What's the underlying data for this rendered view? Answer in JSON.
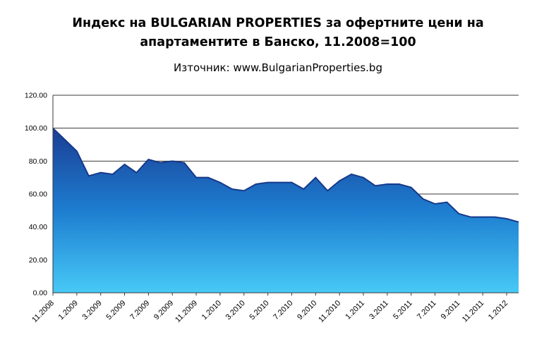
{
  "header": {
    "title_lines": [
      "Индекс на BULGARIAN PROPERTIES за офертните цени на",
      "апартаментите в Банско, 11.2008=100"
    ],
    "subtitle": "Източник: www.BulgarianProperties.bg"
  },
  "chart_data": {
    "type": "area",
    "title": "Индекс на BULGARIAN PROPERTIES за офертните цени на апартаментите в Банско, 11.2008=100",
    "subtitle": "Източник: www.BulgarianProperties.bg",
    "x": [
      "11.2008",
      "12.2008",
      "1.2009",
      "2.2009",
      "3.2009",
      "4.2009",
      "5.2009",
      "6.2009",
      "7.2009",
      "8.2009",
      "9.2009",
      "10.2009",
      "11.2009",
      "12.2009",
      "1.2010",
      "2.2010",
      "3.2010",
      "4.2010",
      "5.2010",
      "6.2010",
      "7.2010",
      "8.2010",
      "9.2010",
      "10.2010",
      "11.2010",
      "12.2010",
      "1.2011",
      "2.2011",
      "3.2011",
      "4.2011",
      "5.2011",
      "6.2011",
      "7.2011",
      "8.2011",
      "9.2011",
      "10.2011",
      "11.2011",
      "12.2011",
      "1.2012",
      "2.2012"
    ],
    "values": [
      100,
      93,
      86,
      71,
      73,
      72,
      78,
      73,
      81,
      79,
      80,
      79,
      70,
      70,
      67,
      63,
      62,
      66,
      67,
      67,
      67,
      63,
      70,
      62,
      68,
      72,
      70,
      65,
      66,
      66,
      64,
      57,
      54,
      55,
      48,
      46,
      46,
      46,
      45,
      43
    ],
    "x_tick_labels": [
      "11.2008",
      "1.2009",
      "3.2009",
      "5.2009",
      "7.2009",
      "9.2009",
      "11.2009",
      "1.2010",
      "3.2010",
      "5.2010",
      "7.2010",
      "9.2010",
      "11.2010",
      "1.2011",
      "3.2011",
      "5.2011",
      "7.2011",
      "9.2011",
      "11.2011",
      "1.2012"
    ],
    "y_ticks": [
      0,
      20,
      40,
      60,
      80,
      100,
      120
    ],
    "y_tick_labels": [
      "0.00",
      "20.00",
      "40.00",
      "60.00",
      "80.00",
      "100.00",
      "120.00"
    ],
    "ylim": [
      0,
      120
    ],
    "grid": true,
    "legend": false,
    "colors": {
      "gradient": [
        "#1a3e94",
        "#1d7dd0",
        "#47c9f6"
      ],
      "line": "#163a8a",
      "grid": "#3a3a3a",
      "text": "#000000"
    }
  }
}
